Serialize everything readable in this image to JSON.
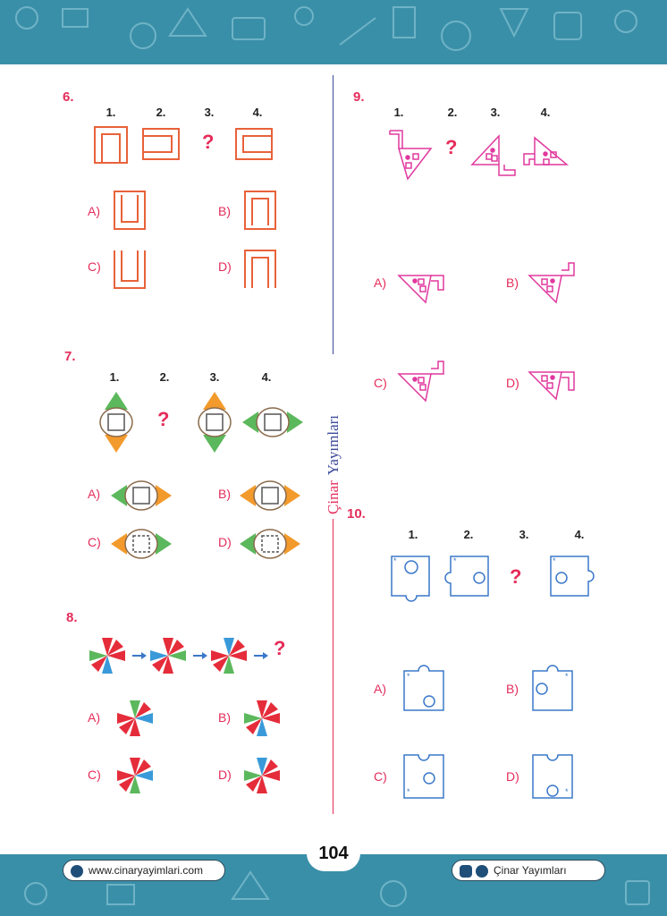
{
  "page_number": "104",
  "brand": {
    "part1": "Çinar",
    "part2": "Yayımları"
  },
  "footer": {
    "website": "www.cinaryayimlari.com",
    "social": "Çinar Yayımları"
  },
  "sequence_labels": [
    "1.",
    "2.",
    "3.",
    "4."
  ],
  "question_mark": "?",
  "option_labels": [
    "A)",
    "B)",
    "C)",
    "D)"
  ],
  "questions": [
    {
      "number": "6."
    },
    {
      "number": "7."
    },
    {
      "number": "8."
    },
    {
      "number": "9."
    },
    {
      "number": "10."
    }
  ],
  "colors": {
    "band": "#3a8fa8",
    "accent": "#e52c5a",
    "orange": "#e8623a",
    "magenta": "#e0389e",
    "blue": "#3a78c9",
    "green": "#5cb85c",
    "amber": "#f39a2c",
    "navy": "#3b4a9a"
  }
}
